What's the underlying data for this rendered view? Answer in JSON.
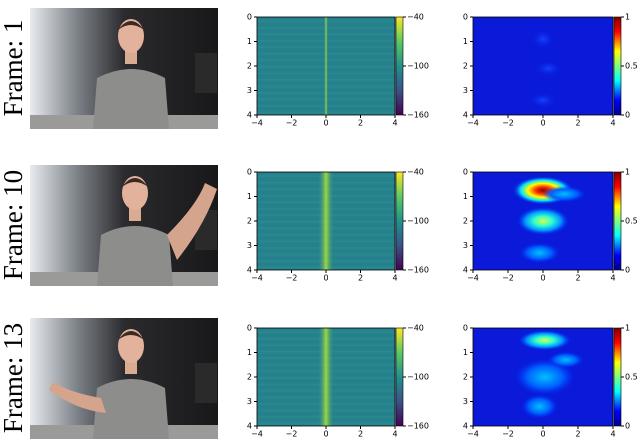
{
  "rows": [
    {
      "frame_label": "Frame: 1"
    },
    {
      "frame_label": "Frame: 10"
    },
    {
      "frame_label": "Frame: 13"
    }
  ],
  "axes": {
    "xlim": [
      -4,
      4
    ],
    "xticks": [
      {
        "value": -4,
        "label": "−4"
      },
      {
        "value": -2,
        "label": "−2"
      },
      0,
      2,
      4
    ],
    "ylim": [
      4,
      0
    ],
    "yticks": [
      0,
      1,
      2,
      3,
      4
    ],
    "spec_colorbar": {
      "lim": [
        -160,
        -40
      ],
      "ticks": [
        {
          "value": -40,
          "label": "−40"
        },
        {
          "value": -100,
          "label": "−100"
        },
        {
          "value": -160,
          "label": "−160"
        }
      ]
    },
    "rd_colorbar": {
      "lim": [
        0,
        1
      ],
      "ticks": [
        1,
        0.5,
        0
      ]
    }
  }
}
